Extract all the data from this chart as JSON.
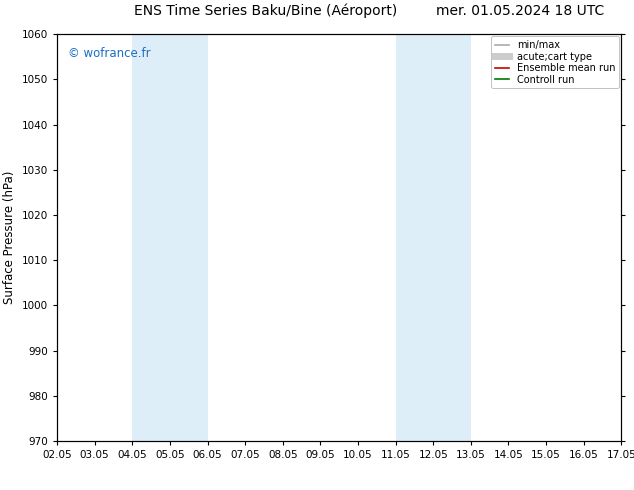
{
  "title_left": "ENS Time Series Baku/Bine (Aéroport)",
  "title_right": "mer. 01.05.2024 18 UTC",
  "ylabel": "Surface Pressure (hPa)",
  "ylim": [
    970,
    1060
  ],
  "yticks": [
    970,
    980,
    990,
    1000,
    1010,
    1020,
    1030,
    1040,
    1050,
    1060
  ],
  "xtick_labels": [
    "02.05",
    "03.05",
    "04.05",
    "05.05",
    "06.05",
    "07.05",
    "08.05",
    "09.05",
    "10.05",
    "11.05",
    "12.05",
    "13.05",
    "14.05",
    "15.05",
    "16.05",
    "17.05"
  ],
  "xtick_positions": [
    0,
    1,
    2,
    3,
    4,
    5,
    6,
    7,
    8,
    9,
    10,
    11,
    12,
    13,
    14,
    15
  ],
  "shaded_bands": [
    {
      "xmin": 2,
      "xmax": 3,
      "color": "#ddeef8"
    },
    {
      "xmin": 3,
      "xmax": 4,
      "color": "#ddeef8"
    },
    {
      "xmin": 9,
      "xmax": 10,
      "color": "#ddeef8"
    },
    {
      "xmin": 10,
      "xmax": 11,
      "color": "#ddeef8"
    }
  ],
  "background_color": "#ffffff",
  "plot_bg_color": "#ffffff",
  "watermark_text": "© wofrance.fr",
  "watermark_color": "#1a6fc4",
  "legend_items": [
    {
      "label": "min/max",
      "color": "#aaaaaa",
      "lw": 1.2,
      "ls": "-"
    },
    {
      "label": "acute;cart type",
      "color": "#cccccc",
      "lw": 5,
      "ls": "-"
    },
    {
      "label": "Ensemble mean run",
      "color": "#cc0000",
      "lw": 1.2,
      "ls": "-"
    },
    {
      "label": "Controll run",
      "color": "#007700",
      "lw": 1.2,
      "ls": "-"
    }
  ],
  "title_fontsize": 10,
  "tick_fontsize": 7.5,
  "ylabel_fontsize": 8.5
}
